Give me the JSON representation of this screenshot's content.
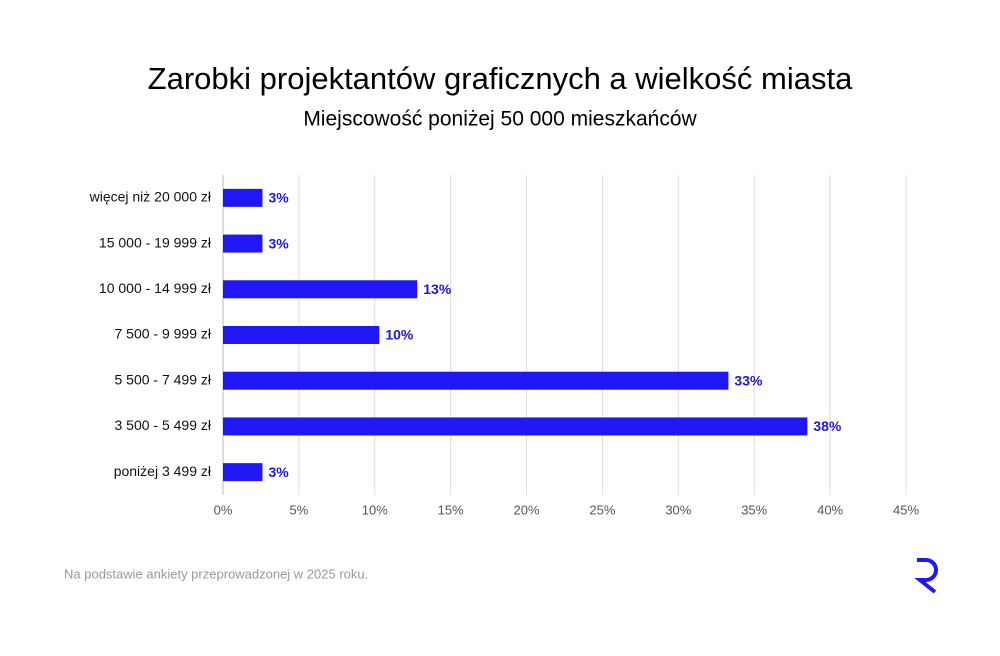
{
  "chart_data": {
    "type": "bar",
    "orientation": "horizontal",
    "title": "Zarobki projektantów graficznych a wielkość miasta",
    "subtitle": "Miejscowość poniżej 50 000 mieszkańców",
    "categories": [
      "więcej niż 20 000 zł",
      "15 000 - 19 999 zł",
      "10 000 - 14 999 zł",
      "7 500 - 9 999 zł",
      "5 500 - 7 499 zł",
      "3 500 - 5 499 zł",
      "poniżej 3 499 zł"
    ],
    "values": [
      2.6,
      2.6,
      12.8,
      10.3,
      33.3,
      38.5,
      2.6
    ],
    "value_labels": [
      "3%",
      "3%",
      "13%",
      "10%",
      "33%",
      "38%",
      "3%"
    ],
    "color": "#1f17f5",
    "xlim": [
      0,
      45
    ],
    "xticks": [
      {
        "value": 0,
        "label": "0%"
      },
      {
        "value": 5,
        "label": "5%"
      },
      {
        "value": 10,
        "label": "10%"
      },
      {
        "value": 15,
        "label": "15%"
      },
      {
        "value": 20,
        "label": "20%"
      },
      {
        "value": 25,
        "label": "25%"
      },
      {
        "value": 30,
        "label": "30%"
      },
      {
        "value": 35,
        "label": "35%"
      },
      {
        "value": 40,
        "label": "40%"
      },
      {
        "value": 45,
        "label": "45%"
      }
    ],
    "grid": true,
    "note": "Na podstawie ankiety przeprowadzonej w 2025 roku."
  }
}
